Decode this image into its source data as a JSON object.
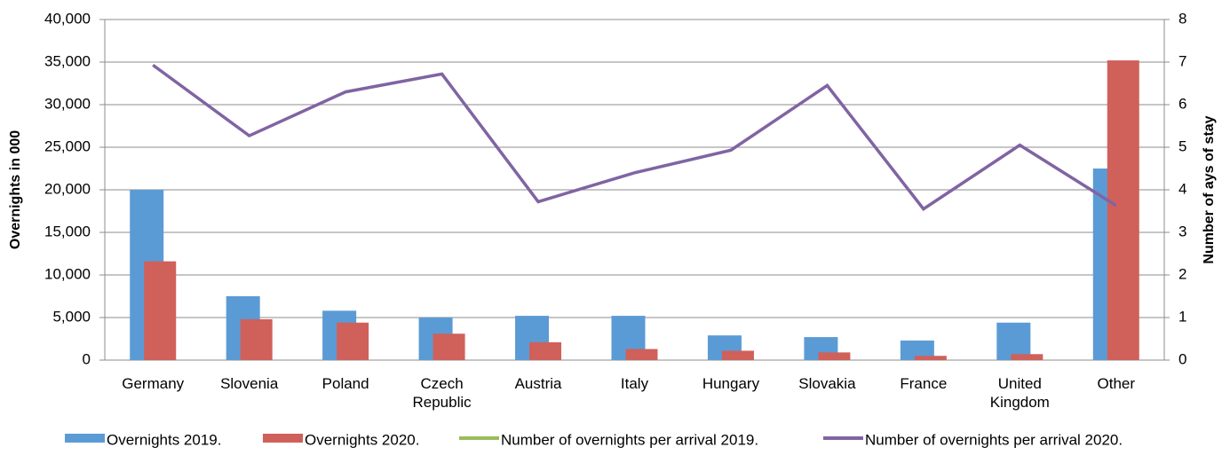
{
  "chart_data": {
    "type": "bar-line",
    "categories": [
      "Germany",
      "Slovenia",
      "Poland",
      "Czech Republic",
      "Austria",
      "Italy",
      "Hungary",
      "Slovakia",
      "France",
      "United Kingdom",
      "Other"
    ],
    "y_label": "Overnights in 000",
    "y2_label": "Number of ays of stay",
    "series": [
      {
        "name": "Overnights 2019.",
        "type": "bar",
        "color": "#5b9bd5",
        "values": [
          20000,
          7500,
          5800,
          5000,
          5200,
          5200,
          2900,
          2700,
          2300,
          4400,
          22500
        ]
      },
      {
        "name": "Overnights 2020.",
        "type": "bar",
        "color": "#d0605a",
        "values": [
          11600,
          4800,
          4400,
          3100,
          2100,
          1300,
          1100,
          900,
          500,
          700,
          35200
        ]
      },
      {
        "name": "Number of overnights per arrival 2019.",
        "type": "line",
        "axis": "y2",
        "color": "#9bbb59",
        "values": [
          null,
          null,
          null,
          null,
          null,
          null,
          null,
          null,
          null,
          null,
          null
        ]
      },
      {
        "name": "Number of overnights per arrival 2020.",
        "type": "line",
        "axis": "y2",
        "color": "#8064a2",
        "values": [
          6.93,
          5.27,
          6.3,
          6.72,
          3.72,
          4.4,
          4.93,
          6.45,
          3.55,
          5.05,
          3.63
        ]
      }
    ],
    "ylim": [
      0,
      40000
    ],
    "yticks": [
      0,
      {
        "value": 5000,
        "label": "5,000"
      },
      {
        "value": 10000,
        "label": "10,000"
      },
      {
        "value": 15000,
        "label": "15,000"
      },
      {
        "value": 20000,
        "label": "20,000"
      },
      {
        "value": 25000,
        "label": "25,000"
      },
      {
        "value": 30000,
        "label": "30,000"
      },
      {
        "value": 35000,
        "label": "35,000"
      },
      {
        "value": 40000,
        "label": "40,000"
      }
    ],
    "y2lim": [
      0,
      8
    ],
    "y2ticks": [
      0,
      1,
      2,
      3,
      4,
      5,
      6,
      7,
      8
    ],
    "grid": true
  }
}
